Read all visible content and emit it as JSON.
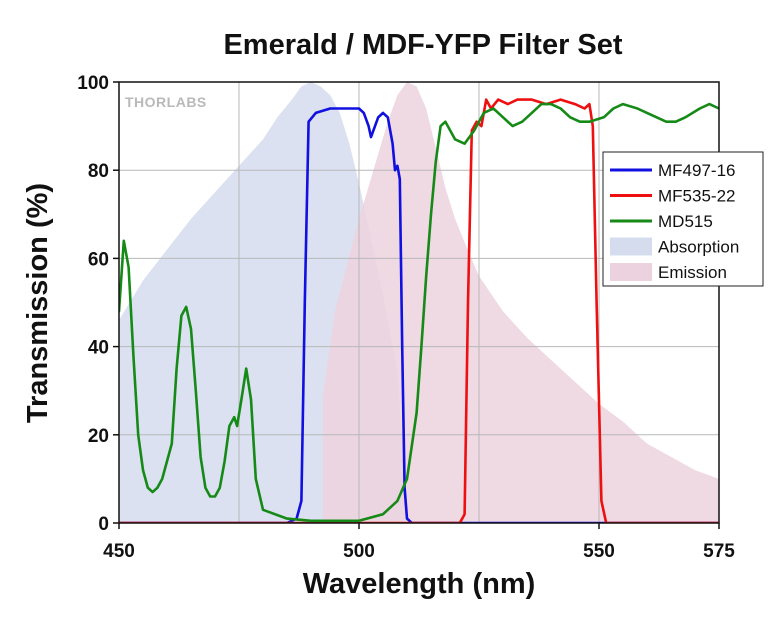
{
  "chart_data": {
    "type": "line",
    "title": "Emerald / MDF-YFP Filter Set",
    "xlabel": "Wavelength (nm)",
    "ylabel": "Transmission (%)",
    "xlim": [
      450,
      575
    ],
    "ylim": [
      0,
      100
    ],
    "xticks": [
      450,
      500,
      550,
      575
    ],
    "yticks": [
      0,
      20,
      40,
      60,
      80,
      100
    ],
    "x_minor_grid": [
      475,
      525
    ],
    "grid": true,
    "legend_position": "right",
    "watermark": "THORLABS",
    "series": [
      {
        "name": "Absorption",
        "kind": "area",
        "color": "#d5dced",
        "points": [
          [
            450,
            46
          ],
          [
            455,
            55
          ],
          [
            460,
            62
          ],
          [
            465,
            69
          ],
          [
            470,
            75
          ],
          [
            475,
            81
          ],
          [
            480,
            87
          ],
          [
            483,
            92
          ],
          [
            486,
            96
          ],
          [
            488,
            99
          ],
          [
            490,
            100
          ],
          [
            492,
            99
          ],
          [
            494,
            97
          ],
          [
            496,
            93
          ],
          [
            498,
            86
          ],
          [
            500,
            77
          ],
          [
            502,
            67
          ],
          [
            504,
            57
          ],
          [
            506,
            46
          ],
          [
            508,
            34
          ],
          [
            509,
            18
          ],
          [
            510,
            0
          ]
        ]
      },
      {
        "name": "Emission",
        "kind": "area",
        "color": "#ecd2de",
        "points": [
          [
            492.5,
            0
          ],
          [
            492.5,
            29
          ],
          [
            495,
            48
          ],
          [
            500,
            69
          ],
          [
            503,
            80
          ],
          [
            506,
            91
          ],
          [
            508,
            97
          ],
          [
            510,
            100
          ],
          [
            512,
            99
          ],
          [
            514,
            94
          ],
          [
            516,
            85
          ],
          [
            518,
            76
          ],
          [
            520,
            69
          ],
          [
            523,
            61
          ],
          [
            525,
            56
          ],
          [
            530,
            48
          ],
          [
            535,
            42
          ],
          [
            540,
            37
          ],
          [
            545,
            32
          ],
          [
            550,
            27
          ],
          [
            555,
            23
          ],
          [
            560,
            18
          ],
          [
            565,
            15
          ],
          [
            570,
            12
          ],
          [
            575,
            10
          ],
          [
            575,
            0
          ]
        ]
      },
      {
        "name": "MF497-16",
        "kind": "line",
        "color": "#1010e0",
        "points": [
          [
            450,
            0
          ],
          [
            485,
            0
          ],
          [
            487,
            1
          ],
          [
            488,
            5
          ],
          [
            488.7,
            50
          ],
          [
            489.5,
            91
          ],
          [
            491,
            93
          ],
          [
            494,
            94
          ],
          [
            497,
            94
          ],
          [
            500,
            94
          ],
          [
            501,
            93
          ],
          [
            502,
            90
          ],
          [
            502.5,
            87.5
          ],
          [
            503,
            89
          ],
          [
            504,
            92
          ],
          [
            505,
            93
          ],
          [
            506,
            92
          ],
          [
            507,
            86
          ],
          [
            507.5,
            80
          ],
          [
            508,
            81
          ],
          [
            508.5,
            78
          ],
          [
            509,
            40
          ],
          [
            509.5,
            8
          ],
          [
            510,
            1
          ],
          [
            511,
            0
          ],
          [
            575,
            0
          ]
        ]
      },
      {
        "name": "MF535-22",
        "kind": "line",
        "color": "#ee1010",
        "points": [
          [
            450,
            0
          ],
          [
            521,
            0
          ],
          [
            522,
            2
          ],
          [
            522.7,
            50
          ],
          [
            523.5,
            89
          ],
          [
            524.5,
            91
          ],
          [
            525.5,
            90
          ],
          [
            526.5,
            96
          ],
          [
            527.5,
            94
          ],
          [
            529,
            96
          ],
          [
            531,
            95
          ],
          [
            533,
            96
          ],
          [
            536,
            96
          ],
          [
            539,
            95
          ],
          [
            542,
            96
          ],
          [
            545,
            95
          ],
          [
            547,
            94
          ],
          [
            548,
            95
          ],
          [
            548.7,
            90
          ],
          [
            549.5,
            50
          ],
          [
            550.5,
            5
          ],
          [
            551.5,
            0
          ],
          [
            575,
            0
          ]
        ]
      },
      {
        "name": "MD515",
        "kind": "line",
        "color": "#168a16",
        "points": [
          [
            450,
            48
          ],
          [
            451,
            64
          ],
          [
            452,
            58
          ],
          [
            453,
            38
          ],
          [
            454,
            20
          ],
          [
            455,
            12
          ],
          [
            456,
            8
          ],
          [
            457,
            7
          ],
          [
            458,
            8
          ],
          [
            459,
            10
          ],
          [
            461,
            18
          ],
          [
            462,
            35
          ],
          [
            463,
            47
          ],
          [
            464,
            49
          ],
          [
            465,
            44
          ],
          [
            466,
            30
          ],
          [
            467,
            15
          ],
          [
            468,
            8
          ],
          [
            469,
            6
          ],
          [
            470,
            6
          ],
          [
            471,
            8
          ],
          [
            472,
            14
          ],
          [
            473,
            22
          ],
          [
            474,
            24
          ],
          [
            474.6,
            22
          ],
          [
            475.5,
            28
          ],
          [
            476.5,
            35
          ],
          [
            477.5,
            28
          ],
          [
            478.5,
            10
          ],
          [
            480,
            3
          ],
          [
            485,
            1
          ],
          [
            490,
            0.5
          ],
          [
            495,
            0.5
          ],
          [
            500,
            0.5
          ],
          [
            505,
            2
          ],
          [
            508,
            5
          ],
          [
            510,
            10
          ],
          [
            512,
            25
          ],
          [
            513,
            40
          ],
          [
            514,
            56
          ],
          [
            515,
            70
          ],
          [
            516,
            82
          ],
          [
            517,
            90
          ],
          [
            518,
            91
          ],
          [
            519,
            89
          ],
          [
            520,
            87
          ],
          [
            522,
            86
          ],
          [
            524,
            89
          ],
          [
            526,
            93
          ],
          [
            528,
            94
          ],
          [
            530,
            92
          ],
          [
            532,
            90
          ],
          [
            534,
            91
          ],
          [
            536,
            93
          ],
          [
            538,
            95
          ],
          [
            540,
            95
          ],
          [
            542,
            94
          ],
          [
            544,
            92
          ],
          [
            546,
            91
          ],
          [
            548,
            91
          ],
          [
            551,
            92
          ],
          [
            553,
            94
          ],
          [
            555,
            95
          ],
          [
            558,
            94
          ],
          [
            560,
            93
          ],
          [
            562,
            92
          ],
          [
            564,
            91
          ],
          [
            566,
            91
          ],
          [
            568,
            92
          ],
          [
            571,
            94
          ],
          [
            573,
            95
          ],
          [
            575,
            94
          ]
        ]
      }
    ],
    "legend": [
      "MF497-16",
      "MF535-22",
      "MD515",
      "Absorption",
      "Emission"
    ]
  }
}
